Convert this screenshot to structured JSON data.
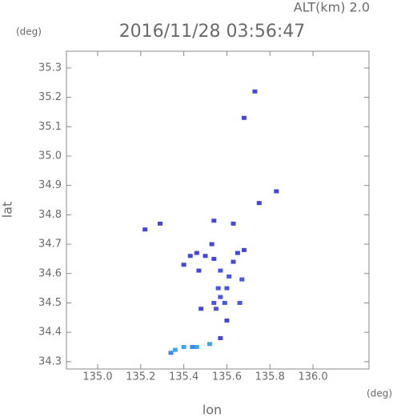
{
  "chart_data": {
    "type": "scatter",
    "title": "2016/11/28 03:56:47",
    "subtitle": "ALT(km) 2.0",
    "y_unit": "(deg)",
    "x_unit": "(deg)",
    "x_label": "lon",
    "y_label": "lat",
    "xlim": [
      134.855,
      136.26
    ],
    "ylim": [
      34.275,
      35.357
    ],
    "xticks": [
      {
        "value": 135.0,
        "label": "135.0"
      },
      135.2,
      135.4,
      135.6,
      135.8,
      {
        "value": 136.0,
        "label": "136.0"
      }
    ],
    "yticks": [
      34.3,
      34.4,
      34.5,
      34.6,
      34.7,
      34.8,
      34.9,
      {
        "value": 35.0,
        "label": "35.0"
      },
      35.1,
      35.2,
      35.3
    ],
    "x": [
      135.73,
      135.68,
      135.83,
      135.22,
      135.29,
      135.63,
      135.54,
      135.75,
      135.43,
      135.46,
      135.5,
      135.53,
      135.54,
      135.63,
      135.68,
      135.65,
      135.4,
      135.47,
      135.57,
      135.61,
      135.67,
      135.56,
      135.6,
      135.57,
      135.54,
      135.59,
      135.66,
      135.48,
      135.55,
      135.6,
      135.57,
      135.52,
      135.46,
      135.44,
      135.4,
      135.36,
      135.34
    ],
    "y": [
      35.22,
      35.13,
      34.88,
      34.75,
      34.77,
      34.77,
      34.78,
      34.84,
      34.66,
      34.67,
      34.66,
      34.7,
      34.65,
      34.64,
      34.68,
      34.67,
      34.63,
      34.61,
      34.61,
      34.59,
      34.58,
      34.55,
      34.55,
      34.52,
      34.5,
      34.5,
      34.5,
      34.48,
      34.48,
      34.44,
      34.38,
      34.36,
      34.35,
      34.35,
      34.35,
      34.34,
      34.33
    ],
    "colors": [
      "#4646d8",
      "#4646d8",
      "#4646d8",
      "#4646d8",
      "#4646d8",
      "#4646d8",
      "#4646d8",
      "#4646d8",
      "#4646d8",
      "#4646d8",
      "#4646d8",
      "#4646d8",
      "#4646d8",
      "#4646d8",
      "#4646d8",
      "#4646d8",
      "#4646d8",
      "#4646d8",
      "#4a55e0",
      "#4a55e0",
      "#4a55e0",
      "#4a55e0",
      "#4a55e0",
      "#4a55e0",
      "#4a55e0",
      "#4a55e0",
      "#4a55e0",
      "#4646d8",
      "#4a55e0",
      "#4646d8",
      "#4646d8",
      "#3aa8ee",
      "#3aa8ee",
      "#3a8ae8",
      "#3aa8ee",
      "#3aa8ee",
      "#3a8ae8"
    ]
  }
}
